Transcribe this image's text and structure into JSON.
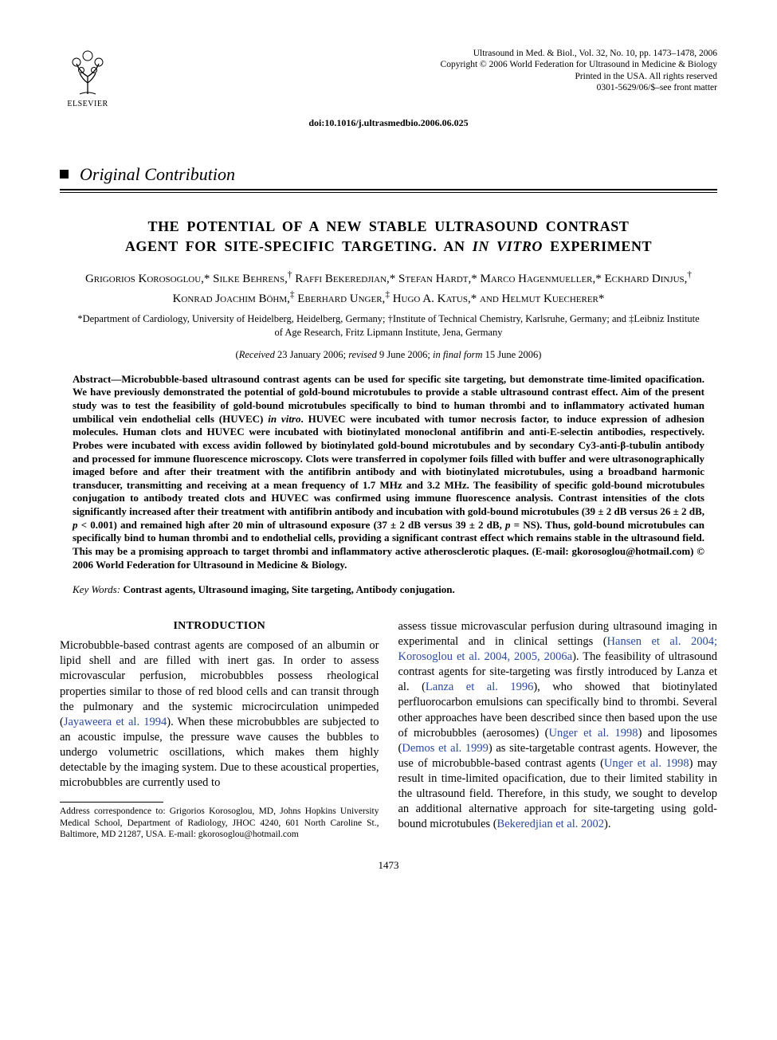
{
  "journal_meta": {
    "line1": "Ultrasound in Med. & Biol., Vol. 32, No. 10, pp. 1473–1478, 2006",
    "line2": "Copyright © 2006 World Federation for Ultrasound in Medicine & Biology",
    "line3": "Printed in the USA. All rights reserved",
    "line4": "0301-5629/06/$–see front matter"
  },
  "publisher_logo_caption": "ELSEVIER",
  "doi": "doi:10.1016/j.ultrasmedbio.2006.06.025",
  "section_label": "Original Contribution",
  "title_line1": "THE POTENTIAL OF A NEW STABLE ULTRASOUND CONTRAST",
  "title_line2_a": "AGENT FOR SITE-SPECIFIC TARGETING. AN ",
  "title_line2_ital": "IN VITRO",
  "title_line2_b": " EXPERIMENT",
  "authors_html": "Grigorios Korosoglou,* Silke Behrens,<sup>†</sup> Raffi Bekeredjian,* Stefan Hardt,* Marco Hagenmueller,* Eckhard Dinjus,<sup>†</sup> Konrad Joachim Böhm,<sup>‡</sup> Eberhard Unger,<sup>‡</sup> Hugo A. Katus,* and Helmut Kuecherer*",
  "affiliations": "*Department of Cardiology, University of Heidelberg, Heidelberg, Germany; †Institute of Technical Chemistry, Karlsruhe, Germany; and ‡Leibniz Institute of Age Research, Fritz Lipmann Institute, Jena, Germany",
  "dates": {
    "received_lbl": "Received",
    "received": " 23 January 2006; ",
    "revised_lbl": "revised",
    "revised": " 9 June 2006; ",
    "final_lbl": "in final form",
    "final": " 15 June 2006"
  },
  "abstract_prefix": "Abstract—",
  "abstract_body_a": "Microbubble-based ultrasound contrast agents can be used for specific site targeting, but demonstrate time-limited opacification. We have previously demonstrated the potential of gold-bound microtubules to provide a stable ultrasound contrast effect. Aim of the present study was to test the feasibility of gold-bound microtubules specifically to bind to human thrombi and to inflammatory activated human umbilical vein endothelial cells (HUVEC) ",
  "abstract_ital1": "in vitro",
  "abstract_body_b": ". HUVEC were incubated with tumor necrosis factor, to induce expression of adhesion molecules. Human clots and HUVEC were incubated with biotinylated monoclonal antifibrin and anti-E-selectin antibodies, respectively. Probes were incubated with excess avidin followed by biotinylated gold-bound microtubules and by secondary Cy3-anti-β-tubulin antibody and processed for immune fluorescence microscopy. Clots were transferred in copolymer foils filled with buffer and were ultrasonographically imaged before and after their treatment with the antifibrin antibody and with biotinylated microtubules, using a broadband harmonic transducer, transmitting and receiving at a mean frequency of 1.7 MHz and 3.2 MHz. The feasibility of specific gold-bound microtubules conjugation to antibody treated clots and HUVEC was confirmed using immune fluorescence analysis. Contrast intensities of the clots significantly increased after their treatment with antifibrin antibody and incubation with gold-bound microtubules (39 ± 2 dB versus 26 ± 2 dB, ",
  "abstract_ital2": "p",
  "abstract_body_c": " < 0.001) and remained high after 20 min of ultrasound exposure (37 ± 2 dB versus 39 ± 2 dB, ",
  "abstract_ital3": "p",
  "abstract_body_d": " = NS). Thus, gold-bound microtubules can specifically bind to human thrombi and to endothelial cells, providing a significant contrast effect which remains stable in the ultrasound field. This may be a promising approach to target thrombi and inflammatory active atherosclerotic plaques. (E-mail: gkorosoglou@hotmail.com)   © 2006 World Federation for Ultrasound in Medicine & Biology.",
  "keywords_label": "Key Words: ",
  "keywords_values": "Contrast agents, Ultrasound imaging, Site targeting, Antibody conjugation.",
  "intro_heading": "INTRODUCTION",
  "intro_p1_a": "Microbubble-based contrast agents are composed of an albumin or lipid shell and are filled with inert gas. In order to assess microvascular perfusion, microbubbles possess rheological properties similar to those of red blood cells and can transit through the pulmonary and the systemic microcirculation unimpeded (",
  "intro_p1_cite1": "Jayaweera et al. 1994",
  "intro_p1_b": "). When these microbubbles are subjected to an acoustic impulse, the pressure wave causes the bubbles to undergo volumetric oscillations, which makes them highly detectable by the imaging system. Due to these acoustical properties, microbubbles are currently used to",
  "intro_p2_a": "assess tissue microvascular perfusion during ultrasound imaging in experimental and in clinical settings (",
  "intro_p2_cite1": "Hansen et al. 2004; Korosoglou et al. 2004, 2005, 2006a",
  "intro_p2_b": "). The feasibility of ultrasound contrast agents for site-targeting was firstly introduced by Lanza et al. (",
  "intro_p2_cite2": "Lanza et al. 1996",
  "intro_p2_c": "), who showed that biotinylated perfluorocarbon emulsions can specifically bind to thrombi. Several other approaches have been described since then based upon the use of microbubbles (aerosomes) (",
  "intro_p2_cite3": "Unger et al. 1998",
  "intro_p2_d": ") and liposomes (",
  "intro_p2_cite4": "Demos et al. 1999",
  "intro_p2_e": ") as site-targetable contrast agents. However, the use of microbubble-based contrast agents (",
  "intro_p2_cite5": "Unger et al. 1998",
  "intro_p2_f": ") may result in time-limited opacification, due to their limited stability in the ultrasound field. Therefore, in this study, we sought to develop an additional alternative approach for site-targeting using gold-bound microtubules (",
  "intro_p2_cite6": "Bekeredjian et al. 2002",
  "intro_p2_g": ").",
  "footnote": "Address correspondence to: Grigorios Korosoglou, MD, Johns Hopkins University Medical School, Department of Radiology, JHOC 4240, 601 North Caroline St., Baltimore, MD 21287, USA. E-mail: gkorosoglou@hotmail.com",
  "page_number": "1473",
  "colors": {
    "citation": "#2a4aa0",
    "text": "#000000",
    "background": "#ffffff"
  }
}
